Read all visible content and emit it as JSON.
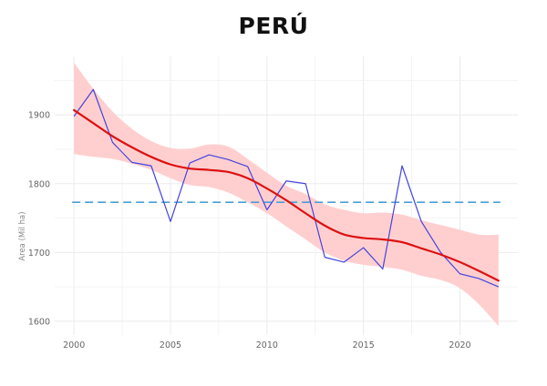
{
  "chart_data": {
    "type": "line",
    "title": "PERÚ",
    "xlabel": "",
    "ylabel": "Area (Mil ha)",
    "xlim": [
      1999,
      2023
    ],
    "ylim": [
      1580,
      1985
    ],
    "x_ticks": [
      2000,
      2005,
      2010,
      2015,
      2020
    ],
    "y_ticks": [
      1600,
      1700,
      1800,
      1900
    ],
    "grid": true,
    "legend": "none",
    "colors": {
      "observed": "#4444dd",
      "trend": "#dd1111",
      "band": "#ffcccc",
      "mean": "#4a9fd8"
    },
    "observed": {
      "x": [
        2000,
        2001,
        2002,
        2003,
        2004,
        2005,
        2006,
        2007,
        2008,
        2009,
        2010,
        2011,
        2012,
        2013,
        2014,
        2015,
        2016,
        2017,
        2018,
        2019,
        2020,
        2021,
        2022
      ],
      "y": [
        1898,
        1937,
        1860,
        1831,
        1826,
        1745,
        1830,
        1842,
        1835,
        1825,
        1762,
        1804,
        1800,
        1693,
        1686,
        1707,
        1676,
        1826,
        1745,
        1700,
        1669,
        1662,
        1650
      ]
    },
    "trend": {
      "x": [
        2000,
        2001,
        2002,
        2003,
        2004,
        2005,
        2006,
        2007,
        2008,
        2009,
        2010,
        2011,
        2012,
        2013,
        2014,
        2015,
        2016,
        2017,
        2018,
        2019,
        2020,
        2021,
        2022
      ],
      "y": [
        1907,
        1888,
        1869,
        1853,
        1839,
        1828,
        1822,
        1820,
        1817,
        1808,
        1793,
        1776,
        1757,
        1739,
        1726,
        1721,
        1719,
        1715,
        1706,
        1697,
        1686,
        1673,
        1659
      ],
      "lower": [
        1843,
        1839,
        1836,
        1829,
        1820,
        1808,
        1798,
        1795,
        1787,
        1773,
        1757,
        1738,
        1719,
        1700,
        1688,
        1682,
        1679,
        1675,
        1666,
        1660,
        1648,
        1624,
        1593
      ],
      "upper": [
        1976,
        1938,
        1905,
        1880,
        1862,
        1852,
        1851,
        1857,
        1854,
        1836,
        1816,
        1797,
        1785,
        1770,
        1762,
        1757,
        1758,
        1755,
        1747,
        1740,
        1733,
        1726,
        1726
      ]
    },
    "mean_line": {
      "y": 1773
    }
  }
}
